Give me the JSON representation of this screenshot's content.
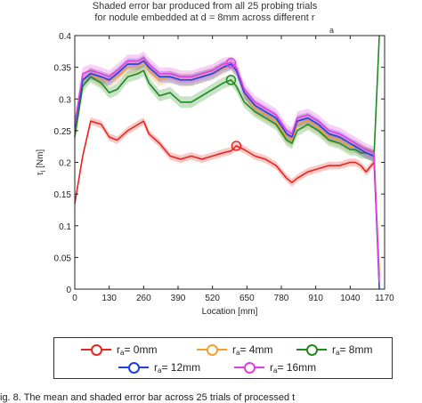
{
  "chart_data": {
    "type": "line",
    "title_lines": [
      "Shaded error bar produced from all 25 probing trials",
      "for nodule embedded at d = 8mm across different r",
      "a"
    ],
    "xlabel": "Location [mm]",
    "ylabel_main": "τ",
    "ylabel_sub": "l",
    "ylabel_unit": " [Nm]",
    "xlim": [
      0,
      1170
    ],
    "ylim": [
      0,
      0.4
    ],
    "xticks": [
      "0",
      "130",
      "260",
      "390",
      "520",
      "650",
      "780",
      "910",
      "1040",
      "1170"
    ],
    "yticks": [
      "0",
      "0.05",
      "0.1",
      "0.15",
      "0.2",
      "0.25",
      "0.3",
      "0.35",
      "0.4"
    ],
    "grid": false,
    "legend_position": "bottom",
    "x": [
      0,
      30,
      60,
      100,
      130,
      160,
      200,
      240,
      260,
      280,
      320,
      360,
      400,
      440,
      480,
      520,
      560,
      590,
      610,
      640,
      680,
      720,
      760,
      800,
      820,
      840,
      880,
      920,
      960,
      1000,
      1040,
      1060,
      1080,
      1100,
      1130,
      1150
    ],
    "series": [
      {
        "name": "r_a = 0mm",
        "label_main": "r",
        "label_sub": "a",
        "label_rest": " = 0mm",
        "color": "#e8261f",
        "band": 0.006,
        "marker_x": 610,
        "marker_y": 0.226,
        "values": [
          0.135,
          0.21,
          0.265,
          0.26,
          0.24,
          0.235,
          0.25,
          0.26,
          0.265,
          0.245,
          0.23,
          0.21,
          0.205,
          0.21,
          0.205,
          0.21,
          0.215,
          0.218,
          0.226,
          0.22,
          0.21,
          0.205,
          0.195,
          0.175,
          0.168,
          0.175,
          0.185,
          0.19,
          0.195,
          0.195,
          0.2,
          0.2,
          0.195,
          0.185,
          0.2,
          0.02
        ]
      },
      {
        "name": "r_a = 4mm",
        "label_main": "r",
        "label_sub": "a",
        "label_rest": " = 4mm",
        "color": "#f5a02a",
        "band": 0.01,
        "marker_x": null,
        "marker_y": null,
        "values": [
          0.25,
          0.33,
          0.34,
          0.33,
          0.33,
          0.335,
          0.35,
          0.35,
          0.36,
          0.345,
          0.33,
          0.335,
          0.33,
          0.33,
          0.335,
          0.34,
          0.348,
          0.355,
          0.345,
          0.31,
          0.285,
          0.275,
          0.265,
          0.24,
          0.235,
          0.26,
          0.265,
          0.255,
          0.24,
          0.235,
          0.225,
          0.225,
          0.22,
          0.215,
          0.21,
          0.03
        ]
      },
      {
        "name": "r_a = 8mm",
        "label_main": "r",
        "label_sub": "a",
        "label_rest": " = 8mm",
        "color": "#1e8a1e",
        "band": 0.009,
        "marker_x": 590,
        "marker_y": 0.33,
        "values": [
          0.24,
          0.32,
          0.335,
          0.325,
          0.31,
          0.315,
          0.335,
          0.34,
          0.345,
          0.325,
          0.305,
          0.31,
          0.295,
          0.295,
          0.305,
          0.315,
          0.325,
          0.33,
          0.32,
          0.295,
          0.28,
          0.27,
          0.26,
          0.235,
          0.23,
          0.25,
          0.26,
          0.25,
          0.235,
          0.23,
          0.22,
          0.22,
          0.215,
          0.215,
          0.21,
          0.4
        ]
      },
      {
        "name": "r_a = 12mm",
        "label_main": "r",
        "label_sub": "a",
        "label_rest": " = 12mm",
        "color": "#1f3fe0",
        "band": 0.009,
        "marker_x": null,
        "marker_y": null,
        "values": [
          0.255,
          0.33,
          0.34,
          0.335,
          0.33,
          0.34,
          0.355,
          0.355,
          0.36,
          0.35,
          0.335,
          0.335,
          0.33,
          0.33,
          0.335,
          0.34,
          0.35,
          0.355,
          0.345,
          0.31,
          0.29,
          0.28,
          0.27,
          0.245,
          0.24,
          0.265,
          0.27,
          0.26,
          0.245,
          0.24,
          0.23,
          0.225,
          0.22,
          0.215,
          0.21,
          0.0
        ]
      },
      {
        "name": "r_a = 16mm",
        "label_main": "r",
        "label_sub": "a",
        "label_rest": " = 16mm",
        "color": "#e040e0",
        "band": 0.01,
        "marker_x": 590,
        "marker_y": 0.357,
        "values": [
          0.26,
          0.34,
          0.345,
          0.34,
          0.335,
          0.345,
          0.36,
          0.36,
          0.365,
          0.355,
          0.34,
          0.34,
          0.335,
          0.335,
          0.34,
          0.345,
          0.355,
          0.357,
          0.35,
          0.315,
          0.295,
          0.285,
          0.275,
          0.25,
          0.245,
          0.27,
          0.275,
          0.265,
          0.25,
          0.245,
          0.235,
          0.23,
          0.225,
          0.22,
          0.215,
          0.01
        ]
      }
    ]
  },
  "caption": "ig. 8. The mean and shaded error bar across 25 trials of processed t"
}
